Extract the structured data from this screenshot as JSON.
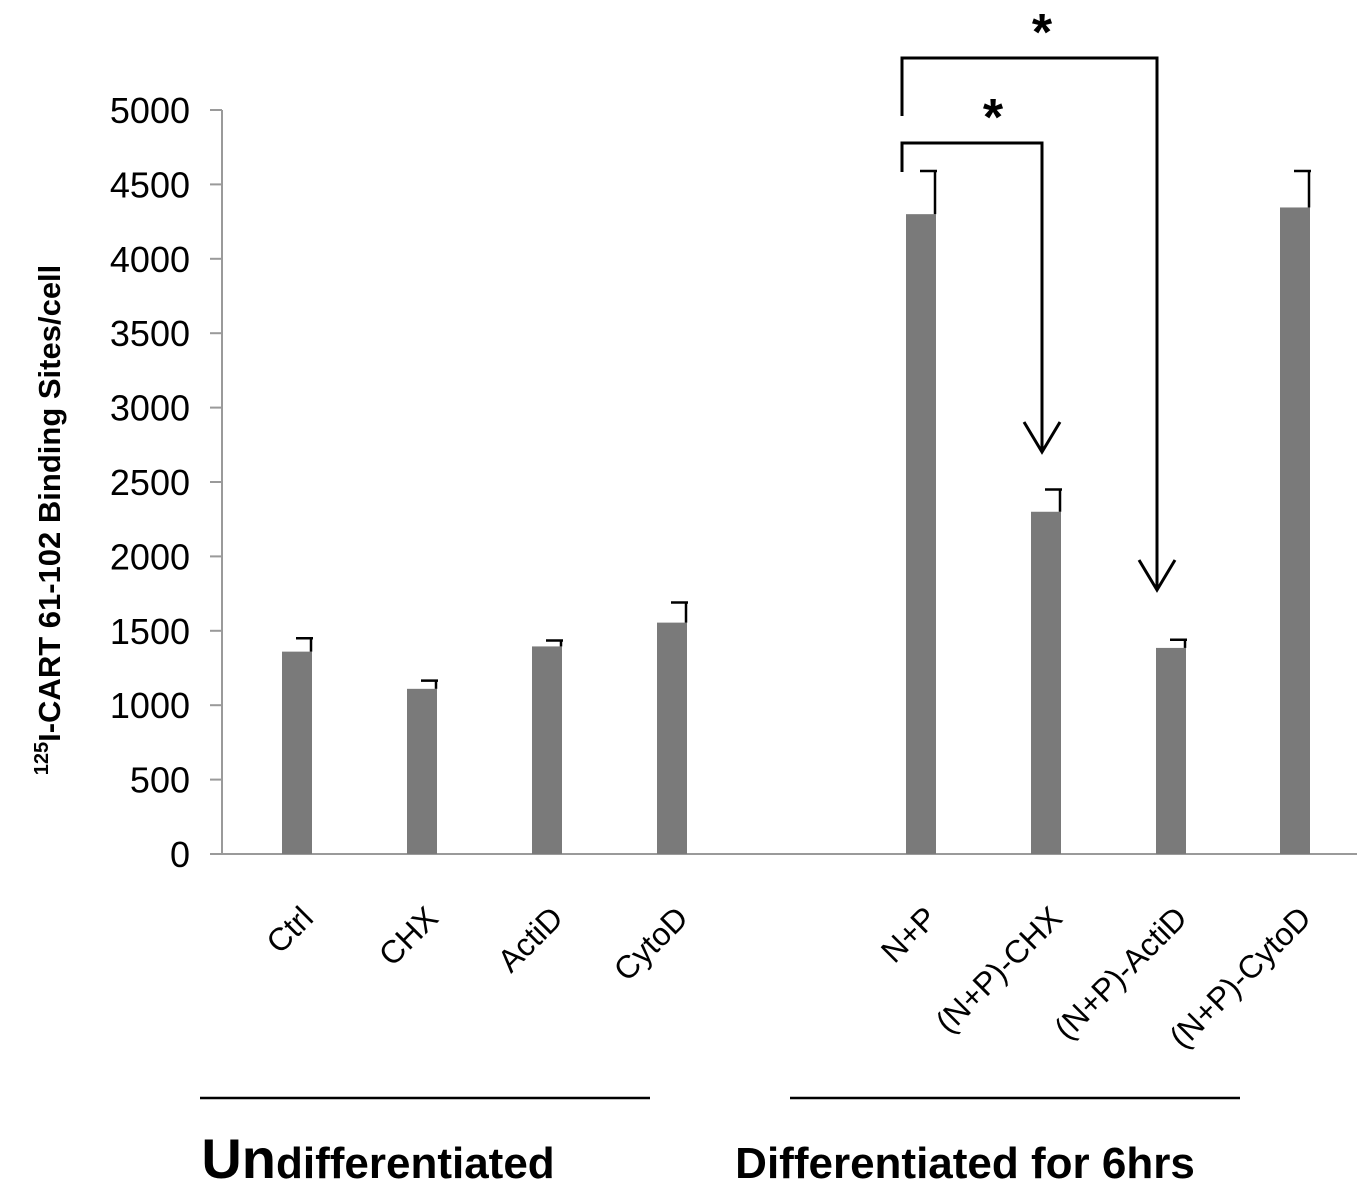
{
  "chart_data": {
    "type": "bar",
    "ylabel": {
      "superscript": "125",
      "text": "I-CART 61-102 Binding Sites/cell"
    },
    "ylim": [
      0,
      5000
    ],
    "yticks": [
      "0",
      "500",
      "1000",
      "1500",
      "2000",
      "2500",
      "3000",
      "3500",
      "4000",
      "4500",
      "5000"
    ],
    "categories": [
      "Ctrl",
      "CHX",
      "ActiD",
      "CytoD",
      "N+P",
      "(N+P)-CHX",
      "(N+P)-ActiD",
      "(N+P)-CytoD"
    ],
    "values": [
      1360,
      1110,
      1395,
      1555,
      4300,
      2300,
      1385,
      4345
    ],
    "errors": [
      90,
      55,
      40,
      135,
      290,
      150,
      55,
      245
    ],
    "bar_color": "#7a7a7a",
    "groups": [
      {
        "label_first": "Un",
        "label_rest": "differentiated",
        "categories": [
          "Ctrl",
          "CHX",
          "ActiD",
          "CytoD"
        ]
      },
      {
        "label": "Differentiated for 6hrs",
        "categories": [
          "N+P",
          "(N+P)-CHX",
          "(N+P)-ActiD",
          "(N+P)-CytoD"
        ]
      }
    ],
    "significance": [
      {
        "from": "N+P",
        "to": "(N+P)-CHX",
        "label": "*"
      },
      {
        "from": "N+P",
        "to": "(N+P)-ActiD",
        "label": "*"
      }
    ],
    "grid": false
  }
}
